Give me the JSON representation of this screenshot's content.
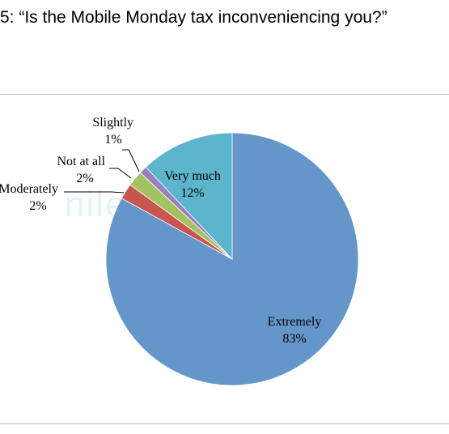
{
  "chart_data": {
    "type": "pie",
    "title": "5: “Is the Mobile Monday tax inconveniencing you?”",
    "watermark": "nilepost.co.ug",
    "slices": [
      {
        "label": "Extremely",
        "value": 83,
        "display": "83%",
        "color": "#6596c9"
      },
      {
        "label": "Moderately",
        "value": 2,
        "display": "2%",
        "color": "#c8554f"
      },
      {
        "label": "Not at all",
        "value": 2,
        "display": "2%",
        "color": "#a3c362"
      },
      {
        "label": "Slightly",
        "value": 1,
        "display": "1%",
        "color": "#9a7fbf"
      },
      {
        "label": "Very much",
        "value": 12,
        "display": "12%",
        "color": "#5cb5cc"
      }
    ]
  }
}
